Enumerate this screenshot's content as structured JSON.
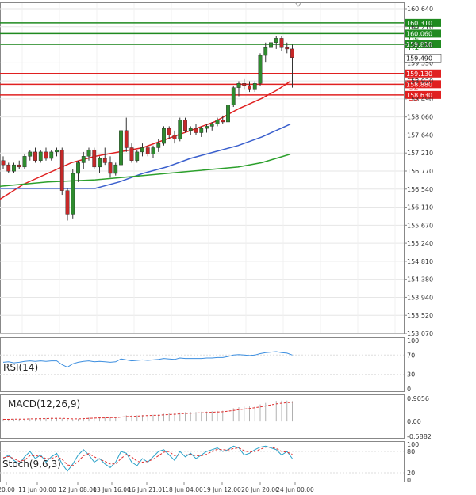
{
  "chart_data": {
    "type": "candlestick",
    "price_axis_ticks": [
      "160.640",
      "160.210",
      "159.780",
      "159.350",
      "158.920",
      "158.490",
      "158.060",
      "157.640",
      "157.210",
      "156.770",
      "156.540",
      "156.110",
      "155.670",
      "155.240",
      "154.810",
      "154.380",
      "153.940",
      "153.520",
      "153.070"
    ],
    "current_price": "159.490",
    "price_range": [
      153.07,
      160.64
    ],
    "levels": [
      {
        "name": "R3",
        "value": 160.31,
        "label": "160.310",
        "color": "#1f8a1f"
      },
      {
        "name": "R2",
        "value": 160.06,
        "label": "160.060",
        "color": "#1f8a1f"
      },
      {
        "name": "R1",
        "value": 159.81,
        "label": "159.810",
        "color": "#1f8a1f"
      },
      {
        "name": "S1",
        "value": 159.13,
        "label": "159.130",
        "color": "#e02020"
      },
      {
        "name": "S2",
        "value": 158.88,
        "label": "158.880",
        "color": "#e02020"
      },
      {
        "name": "S3",
        "value": 158.63,
        "label": "158.630",
        "color": "#e02020"
      }
    ],
    "moving_averages": [
      {
        "name": "MA fast",
        "color": "#e02020",
        "points": [
          [
            0,
            156.2
          ],
          [
            30,
            156.55
          ],
          [
            60,
            156.8
          ],
          [
            90,
            157.05
          ],
          [
            120,
            157.2
          ],
          [
            150,
            157.3
          ],
          [
            180,
            157.4
          ],
          [
            210,
            157.6
          ],
          [
            240,
            157.8
          ],
          [
            270,
            158.0
          ],
          [
            300,
            158.3
          ],
          [
            330,
            158.55
          ],
          [
            350,
            158.75
          ],
          [
            366,
            158.95
          ]
        ]
      },
      {
        "name": "MA mid",
        "color": "#3a5fcd",
        "points": [
          [
            0,
            156.45
          ],
          [
            30,
            156.45
          ],
          [
            60,
            156.45
          ],
          [
            90,
            156.45
          ],
          [
            120,
            156.45
          ],
          [
            150,
            156.6
          ],
          [
            180,
            156.8
          ],
          [
            210,
            156.95
          ],
          [
            240,
            157.15
          ],
          [
            270,
            157.3
          ],
          [
            300,
            157.45
          ],
          [
            330,
            157.65
          ],
          [
            366,
            157.95
          ]
        ]
      },
      {
        "name": "MA slow",
        "color": "#2ca02c",
        "points": [
          [
            0,
            156.5
          ],
          [
            60,
            156.6
          ],
          [
            120,
            156.65
          ],
          [
            180,
            156.75
          ],
          [
            240,
            156.85
          ],
          [
            300,
            156.95
          ],
          [
            330,
            157.05
          ],
          [
            366,
            157.25
          ]
        ]
      }
    ],
    "candles": [
      [
        157.1,
        157.2,
        156.9,
        157.0
      ],
      [
        157.0,
        157.05,
        156.8,
        156.85
      ],
      [
        156.85,
        157.05,
        156.8,
        157.0
      ],
      [
        157.0,
        157.1,
        156.9,
        156.95
      ],
      [
        156.95,
        157.25,
        156.9,
        157.2
      ],
      [
        157.2,
        157.35,
        157.1,
        157.3
      ],
      [
        157.3,
        157.4,
        157.05,
        157.1
      ],
      [
        157.1,
        157.35,
        157.05,
        157.3
      ],
      [
        157.3,
        157.4,
        157.1,
        157.15
      ],
      [
        157.15,
        157.35,
        157.1,
        157.3
      ],
      [
        157.3,
        157.4,
        157.2,
        157.35
      ],
      [
        157.35,
        157.4,
        156.3,
        156.4
      ],
      [
        156.4,
        156.45,
        155.7,
        155.85
      ],
      [
        155.85,
        156.9,
        155.75,
        156.8
      ],
      [
        156.8,
        157.1,
        156.6,
        157.05
      ],
      [
        157.05,
        157.3,
        156.9,
        157.2
      ],
      [
        157.2,
        157.4,
        157.1,
        157.35
      ],
      [
        157.35,
        157.4,
        156.9,
        156.95
      ],
      [
        156.95,
        157.2,
        156.8,
        157.15
      ],
      [
        157.15,
        157.4,
        157.0,
        157.05
      ],
      [
        157.05,
        157.2,
        156.7,
        156.8
      ],
      [
        156.8,
        157.05,
        156.75,
        157.0
      ],
      [
        157.0,
        157.9,
        156.95,
        157.8
      ],
      [
        157.8,
        158.1,
        157.3,
        157.4
      ],
      [
        157.4,
        157.5,
        157.05,
        157.1
      ],
      [
        157.1,
        157.35,
        157.05,
        157.3
      ],
      [
        157.3,
        157.5,
        157.2,
        157.4
      ],
      [
        157.4,
        157.45,
        157.2,
        157.25
      ],
      [
        157.25,
        157.45,
        157.15,
        157.4
      ],
      [
        157.4,
        157.6,
        157.3,
        157.5
      ],
      [
        157.5,
        157.9,
        157.45,
        157.85
      ],
      [
        157.85,
        157.9,
        157.6,
        157.7
      ],
      [
        157.7,
        157.8,
        157.5,
        157.6
      ],
      [
        157.6,
        158.1,
        157.55,
        158.05
      ],
      [
        158.05,
        158.1,
        157.75,
        157.8
      ],
      [
        157.8,
        157.9,
        157.7,
        157.85
      ],
      [
        157.85,
        157.95,
        157.7,
        157.75
      ],
      [
        157.75,
        157.9,
        157.65,
        157.85
      ],
      [
        157.85,
        157.95,
        157.75,
        157.9
      ],
      [
        157.9,
        158.0,
        157.8,
        157.95
      ],
      [
        157.95,
        158.1,
        157.9,
        158.05
      ],
      [
        158.05,
        158.15,
        157.95,
        158.0
      ],
      [
        158.0,
        158.45,
        157.95,
        158.4
      ],
      [
        158.4,
        158.85,
        158.35,
        158.8
      ],
      [
        158.8,
        158.95,
        158.6,
        158.9
      ],
      [
        158.9,
        159.0,
        158.75,
        158.85
      ],
      [
        158.85,
        158.95,
        158.7,
        158.75
      ],
      [
        158.75,
        158.95,
        158.7,
        158.9
      ],
      [
        158.9,
        159.6,
        158.85,
        159.55
      ],
      [
        159.55,
        159.85,
        159.4,
        159.75
      ],
      [
        159.75,
        159.9,
        159.6,
        159.85
      ],
      [
        159.85,
        160.0,
        159.7,
        159.95
      ],
      [
        159.95,
        160.0,
        159.65,
        159.75
      ],
      [
        159.75,
        159.85,
        159.6,
        159.7
      ],
      [
        159.7,
        159.8,
        158.8,
        159.5
      ]
    ],
    "time_labels": [
      "20:00",
      "11 Jun 00:00",
      "12 Jun 08:00",
      "13 Jun 16:00",
      "16 Jun 21:01",
      "18 Jun 04:00",
      "19 Jun 12:00",
      "20 Jun 20:00",
      "24 Jun 00:00"
    ],
    "indicators": {
      "rsi": {
        "label": "RSI(14)",
        "ticks": [
          "100",
          "70",
          "30",
          "0"
        ],
        "range": [
          0,
          100
        ],
        "values": [
          55,
          56,
          54,
          55,
          57,
          58,
          57,
          58,
          57,
          58,
          58,
          50,
          45,
          52,
          55,
          57,
          58,
          56,
          57,
          56,
          55,
          56,
          62,
          60,
          58,
          59,
          60,
          59,
          60,
          61,
          63,
          62,
          61,
          64,
          63,
          63,
          63,
          63,
          64,
          64,
          65,
          65,
          67,
          70,
          71,
          70,
          69,
          70,
          73,
          75,
          76,
          77,
          75,
          74,
          70
        ]
      },
      "macd": {
        "label": "MACD(12,26,9)",
        "ticks": [
          "0.9056",
          "0.00",
          "-0.5882"
        ],
        "range": [
          -0.5882,
          0.9056
        ],
        "values": [
          0.1,
          0.1,
          0.1,
          0.1,
          0.1,
          0.12,
          0.12,
          0.13,
          0.13,
          0.14,
          0.14,
          0.12,
          0.08,
          0.08,
          0.1,
          0.13,
          0.15,
          0.15,
          0.16,
          0.16,
          0.16,
          0.17,
          0.22,
          0.24,
          0.24,
          0.24,
          0.25,
          0.25,
          0.26,
          0.27,
          0.3,
          0.31,
          0.32,
          0.35,
          0.36,
          0.37,
          0.37,
          0.38,
          0.39,
          0.4,
          0.41,
          0.42,
          0.46,
          0.52,
          0.56,
          0.58,
          0.59,
          0.61,
          0.67,
          0.73,
          0.77,
          0.81,
          0.82,
          0.82,
          0.8
        ],
        "signal": [
          0.08,
          0.08,
          0.09,
          0.09,
          0.09,
          0.1,
          0.1,
          0.11,
          0.11,
          0.12,
          0.12,
          0.12,
          0.11,
          0.1,
          0.1,
          0.11,
          0.12,
          0.13,
          0.14,
          0.14,
          0.15,
          0.15,
          0.17,
          0.19,
          0.2,
          0.21,
          0.22,
          0.23,
          0.24,
          0.24,
          0.26,
          0.27,
          0.28,
          0.3,
          0.31,
          0.32,
          0.33,
          0.34,
          0.35,
          0.36,
          0.37,
          0.38,
          0.4,
          0.43,
          0.46,
          0.49,
          0.51,
          0.54,
          0.57,
          0.61,
          0.65,
          0.69,
          0.72,
          0.74,
          0.75
        ]
      },
      "stoch": {
        "label": "Stoch(9,6,3)",
        "ticks": [
          "100",
          "80",
          "20",
          "0"
        ],
        "range": [
          0,
          100
        ],
        "k": [
          60,
          70,
          55,
          45,
          65,
          80,
          60,
          70,
          50,
          65,
          75,
          45,
          25,
          45,
          70,
          85,
          70,
          50,
          60,
          45,
          35,
          50,
          80,
          75,
          50,
          40,
          60,
          50,
          65,
          80,
          85,
          70,
          55,
          80,
          65,
          75,
          60,
          70,
          80,
          85,
          90,
          80,
          85,
          95,
          90,
          70,
          75,
          85,
          92,
          95,
          90,
          85,
          70,
          80,
          60
        ],
        "d": [
          62,
          66,
          60,
          52,
          56,
          68,
          68,
          66,
          60,
          60,
          66,
          58,
          42,
          40,
          52,
          68,
          74,
          65,
          58,
          52,
          45,
          45,
          60,
          72,
          65,
          52,
          50,
          52,
          58,
          68,
          78,
          80,
          68,
          70,
          70,
          72,
          68,
          68,
          72,
          80,
          86,
          85,
          84,
          88,
          90,
          82,
          78,
          80,
          86,
          92,
          92,
          88,
          80,
          78,
          72
        ]
      }
    }
  }
}
